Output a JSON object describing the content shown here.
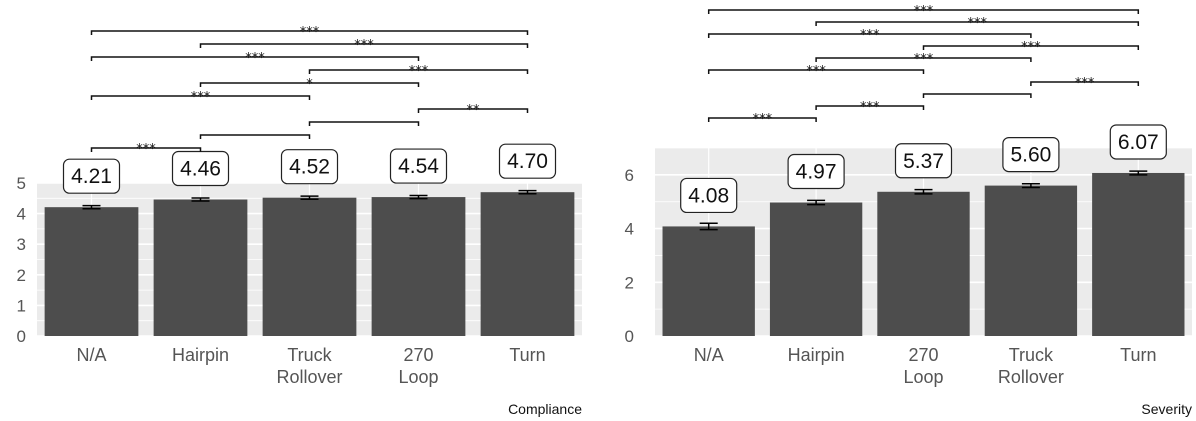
{
  "chart_data": [
    {
      "type": "bar",
      "categories": [
        "N/A",
        "Hairpin",
        "Truck\nRollover",
        "270\nLoop",
        "Turn"
      ],
      "values": [
        4.21,
        4.46,
        4.52,
        4.54,
        4.7
      ],
      "value_labels": [
        "4.21",
        "4.46",
        "4.52",
        "4.54",
        "4.70"
      ],
      "errors": [
        0.05,
        0.05,
        0.05,
        0.05,
        0.05
      ],
      "title": "",
      "xlabel": "Compliance",
      "ylabel": "",
      "ylim": [
        0,
        5
      ],
      "yticks": [
        0,
        1,
        2,
        3,
        4,
        5
      ],
      "grid": true,
      "bar_color": "#4d4d4d",
      "panel_color": "#ebebeb",
      "comparisons": [
        {
          "from": 0,
          "to": 1,
          "label": "***"
        },
        {
          "from": 0,
          "to": 2,
          "label": "***"
        },
        {
          "from": 0,
          "to": 3,
          "label": "***"
        },
        {
          "from": 0,
          "to": 4,
          "label": "***"
        },
        {
          "from": 1,
          "to": 2,
          "label": ""
        },
        {
          "from": 1,
          "to": 3,
          "label": "*"
        },
        {
          "from": 1,
          "to": 4,
          "label": "***"
        },
        {
          "from": 2,
          "to": 3,
          "label": ""
        },
        {
          "from": 2,
          "to": 4,
          "label": "***"
        },
        {
          "from": 3,
          "to": 4,
          "label": "**"
        }
      ]
    },
    {
      "type": "bar",
      "categories": [
        "N/A",
        "Hairpin",
        "270\nLoop",
        "Truck\nRollover",
        "Turn"
      ],
      "values": [
        4.08,
        4.97,
        5.37,
        5.6,
        6.07
      ],
      "value_labels": [
        "4.08",
        "4.97",
        "5.37",
        "5.60",
        "6.07"
      ],
      "errors": [
        0.12,
        0.08,
        0.08,
        0.07,
        0.07
      ],
      "title": "",
      "xlabel": "Severity",
      "ylabel": "",
      "ylim": [
        0,
        7
      ],
      "yticks": [
        0,
        2,
        4,
        6
      ],
      "grid": true,
      "bar_color": "#4d4d4d",
      "panel_color": "#ebebeb",
      "comparisons": [
        {
          "from": 0,
          "to": 1,
          "label": "***"
        },
        {
          "from": 0,
          "to": 2,
          "label": "***"
        },
        {
          "from": 0,
          "to": 3,
          "label": "***"
        },
        {
          "from": 0,
          "to": 4,
          "label": "***"
        },
        {
          "from": 1,
          "to": 2,
          "label": "***"
        },
        {
          "from": 1,
          "to": 3,
          "label": "***"
        },
        {
          "from": 1,
          "to": 4,
          "label": "***"
        },
        {
          "from": 2,
          "to": 3,
          "label": ""
        },
        {
          "from": 2,
          "to": 4,
          "label": "***"
        },
        {
          "from": 3,
          "to": 4,
          "label": "***"
        }
      ]
    }
  ]
}
